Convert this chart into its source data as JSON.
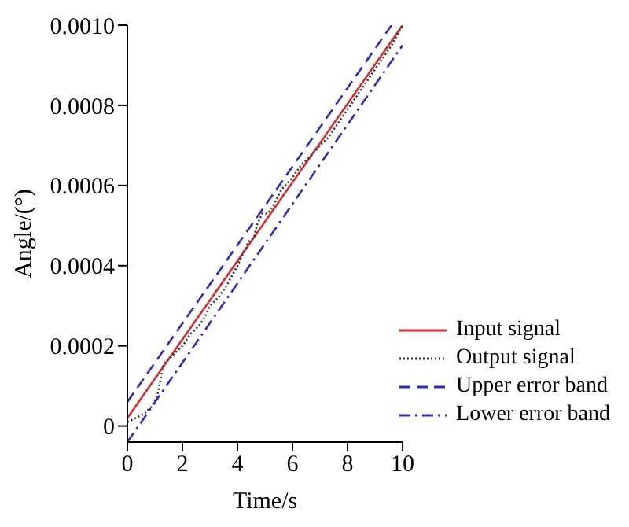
{
  "chart_data": {
    "type": "line",
    "xlabel": "Time/s",
    "ylabel": "Angle/(°)",
    "xlim": [
      0,
      10
    ],
    "xticks": [
      0,
      2,
      4,
      6,
      8,
      10
    ],
    "ylim": [
      -4e-05,
      0.001
    ],
    "yticks": [
      {
        "value": 0,
        "label": "0"
      },
      {
        "value": 0.0002,
        "label": "0.0002"
      },
      {
        "value": 0.0004,
        "label": "0.0004"
      },
      {
        "value": 0.0006,
        "label": "0.0006"
      },
      {
        "value": 0.0008,
        "label": "0.0008"
      },
      {
        "value": 0.001,
        "label": "0.0010"
      }
    ],
    "grid": false,
    "legend": "bottom right",
    "marker": "none",
    "series": [
      {
        "name": "Input signal",
        "color": "#d62c2c",
        "line_style": "solid",
        "x": [
          0,
          10
        ],
        "values": [
          2e-05,
          0.001
        ]
      },
      {
        "name": "Output signal",
        "color": "#333333",
        "line_style": "dotted",
        "x": [
          0,
          0.3,
          0.6,
          0.9,
          1.1,
          1.3,
          1.4,
          1.7,
          2.0,
          2.3,
          2.6,
          2.8,
          3.0,
          3.3,
          3.6,
          4.0,
          4.2,
          4.4,
          4.6,
          4.7,
          4.9,
          5.1,
          5.3,
          5.6,
          6.0,
          6.3,
          6.6,
          7.0,
          7.3,
          7.6,
          8.0,
          8.4,
          8.8,
          9.2,
          9.6,
          10
        ],
        "values": [
          1e-05,
          2e-05,
          3e-05,
          5e-05,
          8e-05,
          0.00015,
          0.00016,
          0.00018,
          0.0002,
          0.00023,
          0.00025,
          0.00027,
          0.0003,
          0.00032,
          0.00035,
          0.0004,
          0.00043,
          0.00046,
          0.00047,
          0.0005,
          0.00053,
          0.00053,
          0.00055,
          0.00059,
          0.00062,
          0.00065,
          0.00067,
          0.0007,
          0.00072,
          0.00075,
          0.00079,
          0.00083,
          0.00087,
          0.00091,
          0.00095,
          0.001
        ]
      },
      {
        "name": "Upper error band",
        "color": "#2b2bc8",
        "line_style": "dashed",
        "x": [
          0,
          9.6
        ],
        "values": [
          6e-05,
          0.001
        ]
      },
      {
        "name": "Lower error band",
        "color": "#2b2bc8",
        "line_style": "dashdot",
        "x": [
          0,
          10
        ],
        "values": [
          -4e-05,
          0.00095
        ]
      }
    ]
  }
}
